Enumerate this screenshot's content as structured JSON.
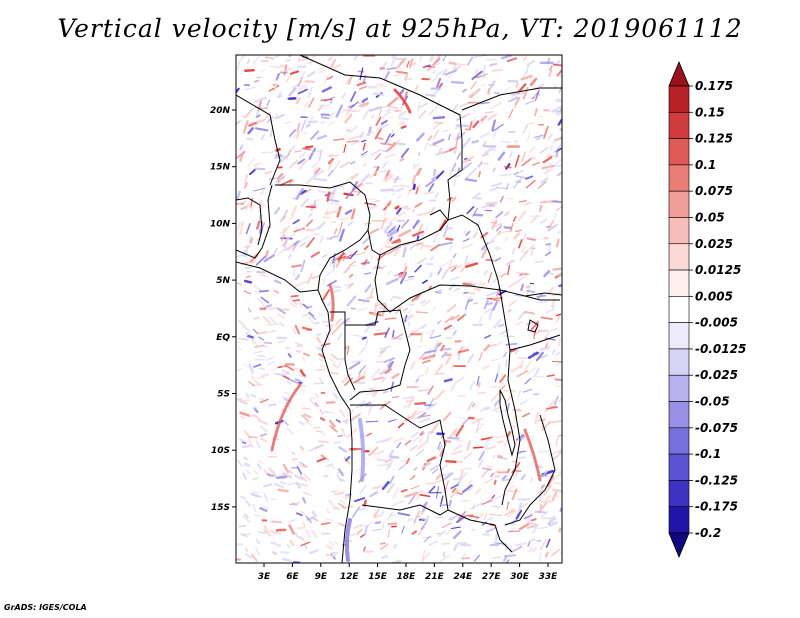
{
  "title": "Vertical velocity [m/s] at 925hPa, VT: 2019061112",
  "credit": "GrADS: IGES/COLA",
  "map": {
    "lon_labels": [
      "3E",
      "6E",
      "9E",
      "12E",
      "15E",
      "18E",
      "21E",
      "24E",
      "27E",
      "30E",
      "33E"
    ],
    "lat_labels": [
      "20N",
      "15N",
      "10N",
      "5N",
      "EQ",
      "5S",
      "10S",
      "15S"
    ]
  },
  "colorbar": {
    "labels": [
      "0.175",
      "0.15",
      "0.125",
      "0.1",
      "0.075",
      "0.05",
      "0.025",
      "0.0125",
      "0.005",
      "-0.005",
      "-0.0125",
      "-0.025",
      "-0.05",
      "-0.075",
      "-0.1",
      "-0.125",
      "-0.175",
      "-0.2"
    ],
    "colors": [
      "#99141a",
      "#b82028",
      "#d13b3f",
      "#e05a58",
      "#eb7d77",
      "#f29e98",
      "#f8bdb8",
      "#fcd9d5",
      "#fff0ee",
      "#ffffff",
      "#eceafb",
      "#d6d3f6",
      "#b7b2ef",
      "#9790e6",
      "#7670de",
      "#5a52d4",
      "#3d32c2",
      "#2114a8",
      "#120880"
    ]
  },
  "colors": {
    "positive_accent": "#e8302a",
    "negative_accent": "#3b2fd0"
  }
}
